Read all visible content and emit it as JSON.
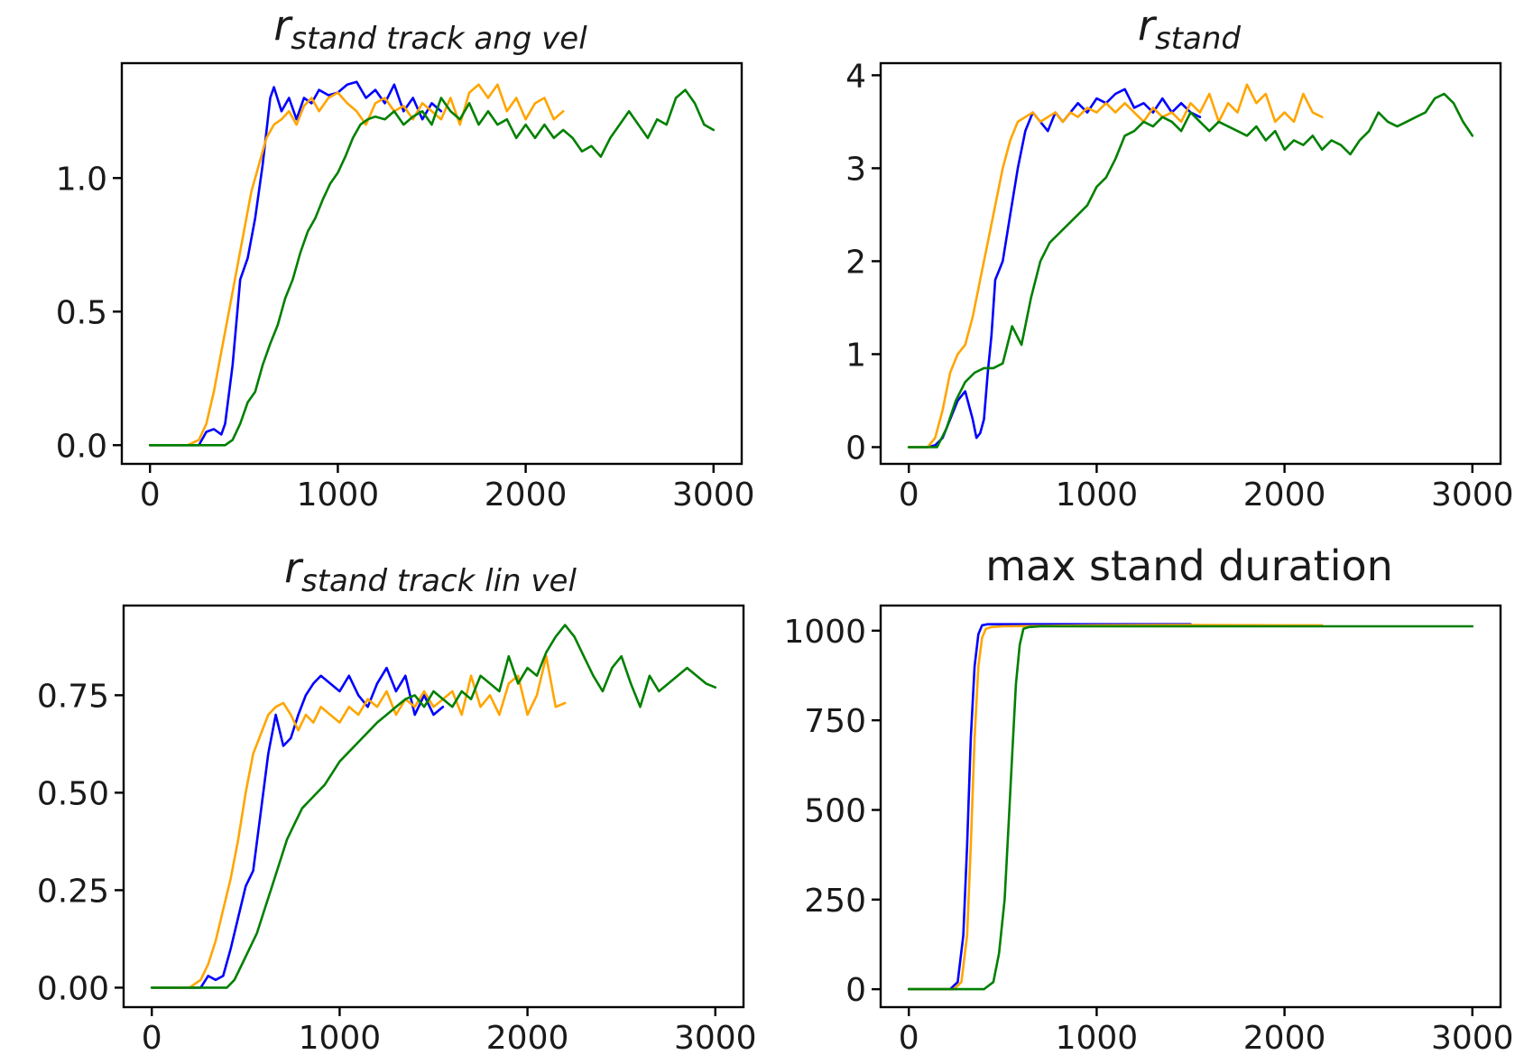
{
  "colors": {
    "blue": "#0000ff",
    "orange": "#ffa500",
    "green": "#008000"
  },
  "chart_data": [
    {
      "type": "line",
      "title": {
        "base": "r",
        "sub": "stand track ang vel"
      },
      "xlabel": "",
      "ylabel": "",
      "xlim": [
        -150,
        3150
      ],
      "ylim": [
        -0.07,
        1.43
      ],
      "xticks": [
        0,
        1000,
        2000,
        3000
      ],
      "xtick_labels": [
        "0",
        "1000",
        "2000",
        "3000"
      ],
      "yticks": [
        0.0,
        0.5,
        1.0
      ],
      "ytick_labels": [
        "0.0",
        "0.5",
        "1.0"
      ],
      "grid": false,
      "series": [
        {
          "color": "blue",
          "x": [
            0,
            200,
            260,
            300,
            340,
            380,
            400,
            440,
            480,
            520,
            560,
            600,
            640,
            660,
            700,
            740,
            780,
            820,
            860,
            900,
            950,
            1000,
            1050,
            1100,
            1150,
            1200,
            1250,
            1300,
            1350,
            1400,
            1450,
            1500,
            1550
          ],
          "y": [
            0,
            0,
            0,
            0.05,
            0.06,
            0.04,
            0.08,
            0.3,
            0.62,
            0.7,
            0.85,
            1.05,
            1.3,
            1.34,
            1.25,
            1.3,
            1.22,
            1.3,
            1.28,
            1.33,
            1.31,
            1.32,
            1.35,
            1.36,
            1.3,
            1.33,
            1.28,
            1.35,
            1.25,
            1.3,
            1.22,
            1.28,
            1.25
          ]
        },
        {
          "color": "orange",
          "x": [
            0,
            200,
            260,
            300,
            340,
            380,
            420,
            460,
            500,
            540,
            580,
            620,
            660,
            700,
            740,
            780,
            820,
            860,
            900,
            950,
            1000,
            1050,
            1100,
            1150,
            1200,
            1250,
            1300,
            1350,
            1400,
            1450,
            1500,
            1550,
            1600,
            1650,
            1700,
            1750,
            1800,
            1850,
            1900,
            1950,
            2000,
            2050,
            2100,
            2150,
            2200
          ],
          "y": [
            0,
            0,
            0.02,
            0.08,
            0.2,
            0.35,
            0.5,
            0.65,
            0.8,
            0.95,
            1.05,
            1.15,
            1.2,
            1.22,
            1.25,
            1.2,
            1.27,
            1.3,
            1.25,
            1.3,
            1.32,
            1.28,
            1.25,
            1.2,
            1.28,
            1.3,
            1.25,
            1.27,
            1.22,
            1.28,
            1.25,
            1.22,
            1.3,
            1.2,
            1.32,
            1.35,
            1.3,
            1.35,
            1.25,
            1.3,
            1.22,
            1.28,
            1.3,
            1.22,
            1.25
          ]
        },
        {
          "color": "green",
          "x": [
            0,
            400,
            440,
            480,
            520,
            560,
            600,
            640,
            680,
            720,
            760,
            800,
            840,
            880,
            920,
            960,
            1000,
            1040,
            1080,
            1120,
            1160,
            1200,
            1250,
            1300,
            1350,
            1400,
            1450,
            1500,
            1550,
            1600,
            1650,
            1700,
            1750,
            1800,
            1850,
            1900,
            1950,
            2000,
            2050,
            2100,
            2150,
            2200,
            2250,
            2300,
            2350,
            2400,
            2450,
            2500,
            2550,
            2600,
            2650,
            2700,
            2750,
            2800,
            2850,
            2900,
            2950,
            3000
          ],
          "y": [
            0,
            0,
            0.02,
            0.08,
            0.16,
            0.2,
            0.3,
            0.38,
            0.45,
            0.55,
            0.62,
            0.72,
            0.8,
            0.85,
            0.92,
            0.98,
            1.02,
            1.08,
            1.15,
            1.2,
            1.22,
            1.23,
            1.22,
            1.25,
            1.2,
            1.23,
            1.25,
            1.2,
            1.3,
            1.25,
            1.22,
            1.28,
            1.2,
            1.25,
            1.2,
            1.22,
            1.15,
            1.2,
            1.15,
            1.2,
            1.15,
            1.18,
            1.15,
            1.1,
            1.12,
            1.08,
            1.15,
            1.2,
            1.25,
            1.2,
            1.15,
            1.22,
            1.2,
            1.3,
            1.33,
            1.28,
            1.2,
            1.18
          ]
        }
      ]
    },
    {
      "type": "line",
      "title": {
        "base": "r",
        "sub": "stand"
      },
      "xlabel": "",
      "ylabel": "",
      "xlim": [
        -150,
        3150
      ],
      "ylim": [
        -0.18,
        4.13
      ],
      "xticks": [
        0,
        1000,
        2000,
        3000
      ],
      "xtick_labels": [
        "0",
        "1000",
        "2000",
        "3000"
      ],
      "yticks": [
        0,
        1,
        2,
        3,
        4
      ],
      "ytick_labels": [
        "0",
        "1",
        "2",
        "3",
        "4"
      ],
      "grid": false,
      "series": [
        {
          "color": "blue",
          "x": [
            0,
            100,
            140,
            180,
            220,
            260,
            300,
            340,
            360,
            380,
            400,
            420,
            440,
            460,
            480,
            500,
            540,
            580,
            620,
            660,
            700,
            740,
            780,
            820,
            860,
            900,
            950,
            1000,
            1050,
            1100,
            1150,
            1200,
            1250,
            1300,
            1350,
            1400,
            1450,
            1500,
            1550
          ],
          "y": [
            0,
            0,
            0.02,
            0.1,
            0.3,
            0.5,
            0.6,
            0.3,
            0.1,
            0.15,
            0.3,
            0.8,
            1.2,
            1.8,
            1.9,
            2.0,
            2.5,
            3.0,
            3.4,
            3.6,
            3.5,
            3.4,
            3.6,
            3.5,
            3.6,
            3.7,
            3.6,
            3.75,
            3.7,
            3.8,
            3.85,
            3.65,
            3.7,
            3.6,
            3.75,
            3.6,
            3.7,
            3.6,
            3.55
          ]
        },
        {
          "color": "orange",
          "x": [
            0,
            100,
            140,
            180,
            220,
            260,
            300,
            340,
            380,
            420,
            460,
            500,
            540,
            580,
            620,
            660,
            700,
            740,
            780,
            820,
            860,
            900,
            950,
            1000,
            1050,
            1100,
            1150,
            1200,
            1250,
            1300,
            1350,
            1400,
            1450,
            1500,
            1550,
            1600,
            1650,
            1700,
            1750,
            1800,
            1850,
            1900,
            1950,
            2000,
            2050,
            2100,
            2150,
            2200
          ],
          "y": [
            0,
            0,
            0.1,
            0.4,
            0.8,
            1.0,
            1.1,
            1.4,
            1.8,
            2.2,
            2.6,
            3.0,
            3.3,
            3.5,
            3.55,
            3.6,
            3.5,
            3.55,
            3.6,
            3.5,
            3.6,
            3.55,
            3.65,
            3.6,
            3.7,
            3.6,
            3.7,
            3.6,
            3.5,
            3.65,
            3.55,
            3.6,
            3.5,
            3.7,
            3.6,
            3.8,
            3.5,
            3.7,
            3.6,
            3.9,
            3.7,
            3.8,
            3.5,
            3.6,
            3.5,
            3.8,
            3.6,
            3.55
          ]
        },
        {
          "color": "green",
          "x": [
            0,
            150,
            200,
            250,
            300,
            350,
            400,
            450,
            500,
            550,
            600,
            650,
            700,
            750,
            800,
            850,
            900,
            950,
            1000,
            1050,
            1100,
            1150,
            1200,
            1250,
            1300,
            1350,
            1400,
            1450,
            1500,
            1550,
            1600,
            1650,
            1700,
            1750,
            1800,
            1850,
            1900,
            1950,
            2000,
            2050,
            2100,
            2150,
            2200,
            2250,
            2300,
            2350,
            2400,
            2450,
            2500,
            2550,
            2600,
            2650,
            2700,
            2750,
            2800,
            2850,
            2900,
            2950,
            3000
          ],
          "y": [
            0,
            0,
            0.2,
            0.5,
            0.7,
            0.8,
            0.85,
            0.85,
            0.9,
            1.3,
            1.1,
            1.6,
            2.0,
            2.2,
            2.3,
            2.4,
            2.5,
            2.6,
            2.8,
            2.9,
            3.1,
            3.35,
            3.4,
            3.5,
            3.45,
            3.55,
            3.5,
            3.4,
            3.6,
            3.5,
            3.4,
            3.5,
            3.45,
            3.4,
            3.35,
            3.45,
            3.3,
            3.4,
            3.2,
            3.3,
            3.25,
            3.35,
            3.2,
            3.3,
            3.25,
            3.15,
            3.3,
            3.4,
            3.6,
            3.5,
            3.45,
            3.5,
            3.55,
            3.6,
            3.75,
            3.8,
            3.7,
            3.5,
            3.35
          ]
        }
      ]
    },
    {
      "type": "line",
      "title": {
        "base": "r",
        "sub": "stand track lin vel"
      },
      "xlabel": "",
      "ylabel": "",
      "xlim": [
        -150,
        3150
      ],
      "ylim": [
        -0.05,
        0.98
      ],
      "xticks": [
        0,
        1000,
        2000,
        3000
      ],
      "xtick_labels": [
        "0",
        "1000",
        "2000",
        "3000"
      ],
      "yticks": [
        0.0,
        0.25,
        0.5,
        0.75
      ],
      "ytick_labels": [
        "0.00",
        "0.25",
        "0.50",
        "0.75"
      ],
      "grid": false,
      "series": [
        {
          "color": "blue",
          "x": [
            0,
            200,
            260,
            300,
            340,
            380,
            420,
            460,
            500,
            540,
            580,
            620,
            660,
            700,
            740,
            780,
            820,
            860,
            900,
            950,
            1000,
            1050,
            1100,
            1150,
            1200,
            1250,
            1300,
            1350,
            1400,
            1450,
            1500,
            1550
          ],
          "y": [
            0,
            0,
            0,
            0.03,
            0.02,
            0.03,
            0.1,
            0.18,
            0.26,
            0.3,
            0.45,
            0.6,
            0.7,
            0.62,
            0.64,
            0.7,
            0.75,
            0.78,
            0.8,
            0.78,
            0.76,
            0.8,
            0.75,
            0.72,
            0.78,
            0.82,
            0.76,
            0.8,
            0.7,
            0.75,
            0.7,
            0.72
          ]
        },
        {
          "color": "orange",
          "x": [
            0,
            200,
            260,
            300,
            340,
            380,
            420,
            460,
            500,
            540,
            580,
            620,
            660,
            700,
            740,
            780,
            820,
            860,
            900,
            950,
            1000,
            1050,
            1100,
            1150,
            1200,
            1250,
            1300,
            1350,
            1400,
            1450,
            1500,
            1550,
            1600,
            1650,
            1700,
            1750,
            1800,
            1850,
            1900,
            1950,
            2000,
            2050,
            2100,
            2150,
            2200
          ],
          "y": [
            0,
            0,
            0.02,
            0.06,
            0.12,
            0.2,
            0.28,
            0.38,
            0.5,
            0.6,
            0.65,
            0.7,
            0.72,
            0.73,
            0.7,
            0.66,
            0.7,
            0.68,
            0.72,
            0.7,
            0.68,
            0.72,
            0.7,
            0.74,
            0.72,
            0.76,
            0.7,
            0.74,
            0.72,
            0.76,
            0.72,
            0.74,
            0.76,
            0.7,
            0.8,
            0.72,
            0.75,
            0.7,
            0.78,
            0.8,
            0.7,
            0.75,
            0.85,
            0.72,
            0.73
          ]
        },
        {
          "color": "green",
          "x": [
            0,
            400,
            440,
            480,
            520,
            560,
            600,
            640,
            680,
            720,
            760,
            800,
            840,
            880,
            920,
            960,
            1000,
            1040,
            1080,
            1120,
            1160,
            1200,
            1250,
            1300,
            1350,
            1400,
            1450,
            1500,
            1550,
            1600,
            1650,
            1700,
            1750,
            1800,
            1850,
            1900,
            1950,
            2000,
            2050,
            2100,
            2150,
            2200,
            2250,
            2300,
            2350,
            2400,
            2450,
            2500,
            2550,
            2600,
            2650,
            2700,
            2750,
            2800,
            2850,
            2900,
            2950,
            3000
          ],
          "y": [
            0,
            0,
            0.02,
            0.06,
            0.1,
            0.14,
            0.2,
            0.26,
            0.32,
            0.38,
            0.42,
            0.46,
            0.48,
            0.5,
            0.52,
            0.55,
            0.58,
            0.6,
            0.62,
            0.64,
            0.66,
            0.68,
            0.7,
            0.72,
            0.74,
            0.75,
            0.72,
            0.76,
            0.74,
            0.72,
            0.76,
            0.74,
            0.8,
            0.78,
            0.76,
            0.85,
            0.78,
            0.82,
            0.8,
            0.86,
            0.9,
            0.93,
            0.9,
            0.85,
            0.8,
            0.76,
            0.82,
            0.85,
            0.78,
            0.72,
            0.8,
            0.76,
            0.78,
            0.8,
            0.82,
            0.8,
            0.78,
            0.77
          ]
        }
      ]
    },
    {
      "type": "line",
      "title": "max stand duration",
      "xlabel": "",
      "ylabel": "",
      "xlim": [
        -150,
        3150
      ],
      "ylim": [
        -50,
        1070
      ],
      "xticks": [
        0,
        1000,
        2000,
        3000
      ],
      "xtick_labels": [
        "0",
        "1000",
        "2000",
        "3000"
      ],
      "yticks": [
        0,
        250,
        500,
        750,
        1000
      ],
      "ytick_labels": [
        "0",
        "250",
        "500",
        "750",
        "1000"
      ],
      "grid": false,
      "series": [
        {
          "color": "blue",
          "x": [
            0,
            220,
            260,
            290,
            310,
            330,
            350,
            370,
            390,
            420,
            500,
            1000,
            1500
          ],
          "y": [
            0,
            0,
            20,
            150,
            400,
            700,
            900,
            990,
            1015,
            1018,
            1018,
            1018,
            1018
          ]
        },
        {
          "color": "orange",
          "x": [
            0,
            240,
            280,
            310,
            330,
            350,
            370,
            390,
            410,
            440,
            500,
            1000,
            1500,
            2000,
            2200
          ],
          "y": [
            0,
            0,
            20,
            150,
            400,
            700,
            900,
            980,
            1005,
            1010,
            1012,
            1015,
            1016,
            1015,
            1015
          ]
        },
        {
          "color": "green",
          "x": [
            0,
            400,
            450,
            480,
            510,
            530,
            550,
            570,
            590,
            610,
            640,
            700,
            1000,
            2000,
            3000
          ],
          "y": [
            0,
            0,
            20,
            100,
            250,
            450,
            650,
            850,
            960,
            1005,
            1010,
            1012,
            1012,
            1012,
            1012
          ]
        }
      ]
    }
  ]
}
